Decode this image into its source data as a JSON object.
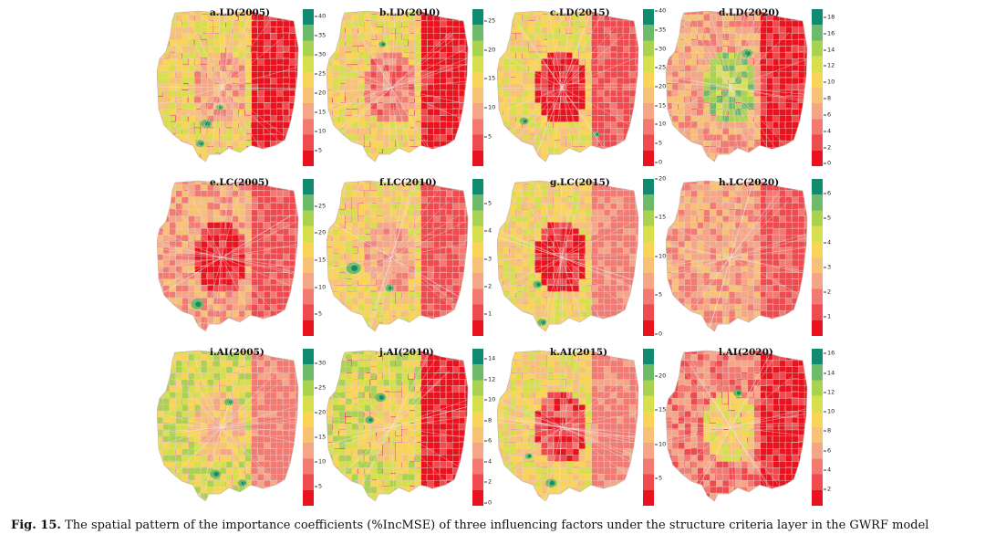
{
  "caption": {
    "label": "Fig. 15.",
    "text": " The spatial pattern of the importance coefficients (%IncMSE) of three influencing factors under the structure criteria layer in the GWRF model"
  },
  "colors": {
    "ramp": [
      "#e8131f",
      "#ef4a4f",
      "#f27a73",
      "#f4a686",
      "#f7c275",
      "#f8d558",
      "#d8df4d",
      "#a8d250",
      "#6dba6b",
      "#128a6f"
    ]
  },
  "panels": [
    {
      "title": "a.LD(2005)",
      "ticks": [
        "40",
        "35",
        "30",
        "25",
        "20",
        "15",
        "10",
        "5"
      ],
      "legend_max": 42,
      "legend_min": 1
    },
    {
      "title": "b.LD(2010)",
      "ticks": [
        "25",
        "20",
        "15",
        "10",
        "5"
      ],
      "legend_max": 27,
      "legend_min": 0
    },
    {
      "title": "c.LD(2015)",
      "ticks": [
        "40",
        "35",
        "30",
        "25",
        "20",
        "15",
        "10",
        "5",
        "0"
      ],
      "legend_max": 40.5,
      "legend_min": -1
    },
    {
      "title": "d.LD(2020)",
      "ticks": [
        "18",
        "16",
        "14",
        "12",
        "10",
        "8",
        "6",
        "4",
        "2",
        "0"
      ],
      "legend_max": 19,
      "legend_min": -0.3
    },
    {
      "title": "e.LC(2005)",
      "ticks": [
        "25",
        "20",
        "15",
        "10",
        "5"
      ],
      "legend_max": 30,
      "legend_min": 1
    },
    {
      "title": "f.LC(2010)",
      "ticks": [
        "5",
        "4",
        "3",
        "2",
        "1"
      ],
      "legend_max": 5.9,
      "legend_min": 0.2
    },
    {
      "title": "g.LC(2015)",
      "ticks": [
        "20",
        "15",
        "10",
        "5",
        "0"
      ],
      "legend_max": 20,
      "legend_min": -0.3
    },
    {
      "title": "h.LC(2020)",
      "ticks": [
        "6",
        "5",
        "4",
        "3",
        "2",
        "1"
      ],
      "legend_max": 6.6,
      "legend_min": 0.2
    },
    {
      "title": "i.AI(2005)",
      "ticks": [
        "30",
        "25",
        "20",
        "15",
        "10",
        "5"
      ],
      "legend_max": 33,
      "legend_min": 1
    },
    {
      "title": "j.AI(2010)",
      "ticks": [
        "14",
        "12",
        "10",
        "8",
        "6",
        "4",
        "2",
        "0"
      ],
      "legend_max": 15,
      "legend_min": -0.3
    },
    {
      "title": "k.AI(2015)",
      "ticks": [
        "20",
        "15",
        "10",
        "5"
      ],
      "legend_max": 24,
      "legend_min": 1
    },
    {
      "title": "l.AI(2020)",
      "ticks": [
        "16",
        "14",
        "12",
        "10",
        "8",
        "6",
        "4",
        "2"
      ],
      "legend_max": 16.5,
      "legend_min": 0.3
    }
  ]
}
